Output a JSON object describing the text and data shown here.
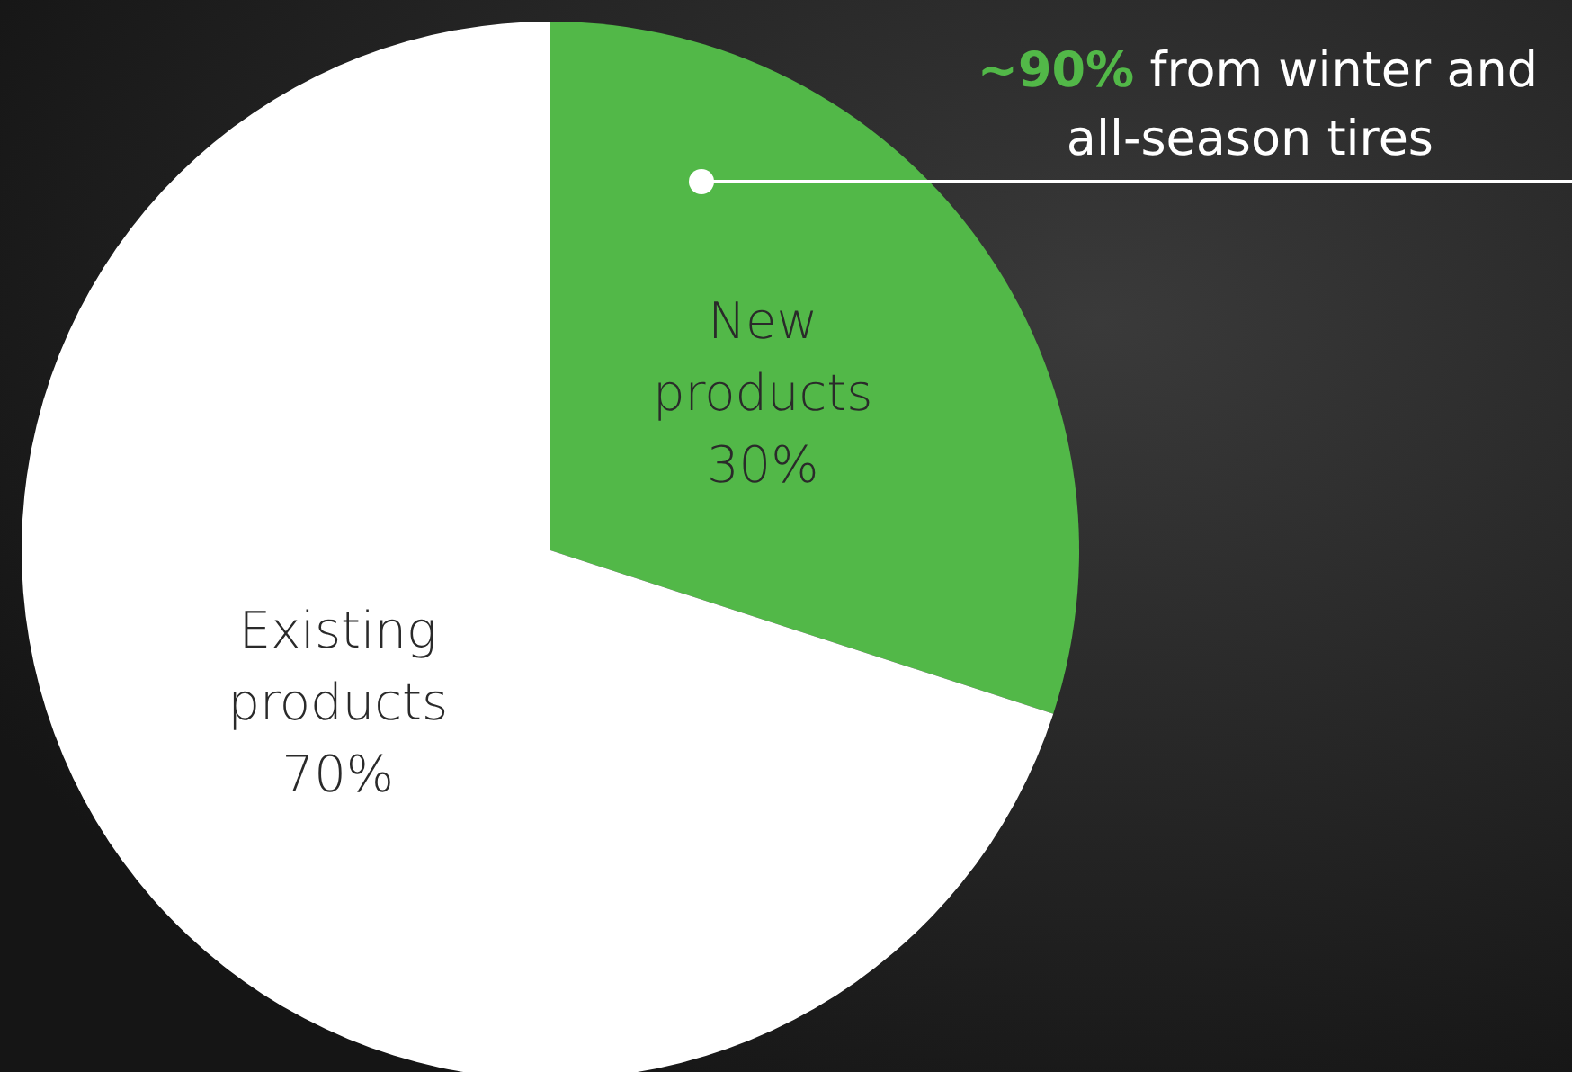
{
  "chart_data": {
    "type": "pie",
    "categories": [
      "New products",
      "Existing products"
    ],
    "values": [
      30,
      70
    ],
    "colors": [
      "#52b848",
      "#ffffff"
    ],
    "data_labels": true,
    "value_labels": [
      "30%",
      "70%"
    ],
    "annotations": [
      "~90% from winter and all-season tires"
    ]
  }
}
